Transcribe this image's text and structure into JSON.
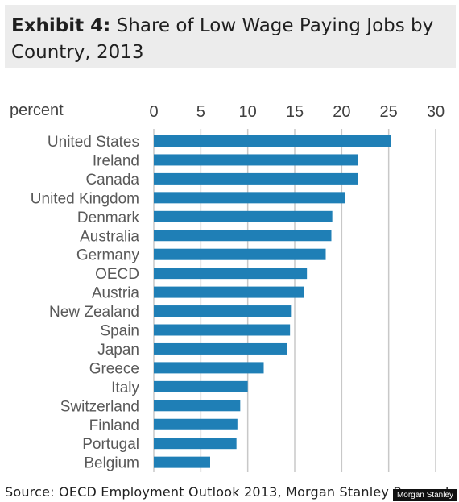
{
  "header": {
    "exhibit": "Exhibit 4:",
    "title_line1": "Share of Low Wage Paying Jobs by",
    "title_line2": "Country, 2013"
  },
  "source": "Source: OECD Employment Outlook 2013, Morgan Stanley Research",
  "watermark": "Morgan Stanley",
  "chart_data": {
    "type": "bar",
    "orientation": "horizontal",
    "unit_label": "percent",
    "xlim": [
      0,
      30
    ],
    "xticks": [
      0,
      5,
      10,
      15,
      20,
      25,
      30
    ],
    "grid": true,
    "bar_color": "#1f7fb6",
    "categories": [
      "United States",
      "Ireland",
      "Canada",
      "United Kingdom",
      "Denmark",
      "Australia",
      "Germany",
      "OECD",
      "Austria",
      "New Zealand",
      "Spain",
      "Japan",
      "Greece",
      "Italy",
      "Switzerland",
      "Finland",
      "Portugal",
      "Belgium"
    ],
    "values": [
      25.2,
      21.7,
      21.7,
      20.4,
      19.0,
      18.9,
      18.3,
      16.3,
      16.0,
      14.6,
      14.5,
      14.2,
      11.7,
      10.0,
      9.2,
      8.9,
      8.8,
      6.0
    ]
  }
}
